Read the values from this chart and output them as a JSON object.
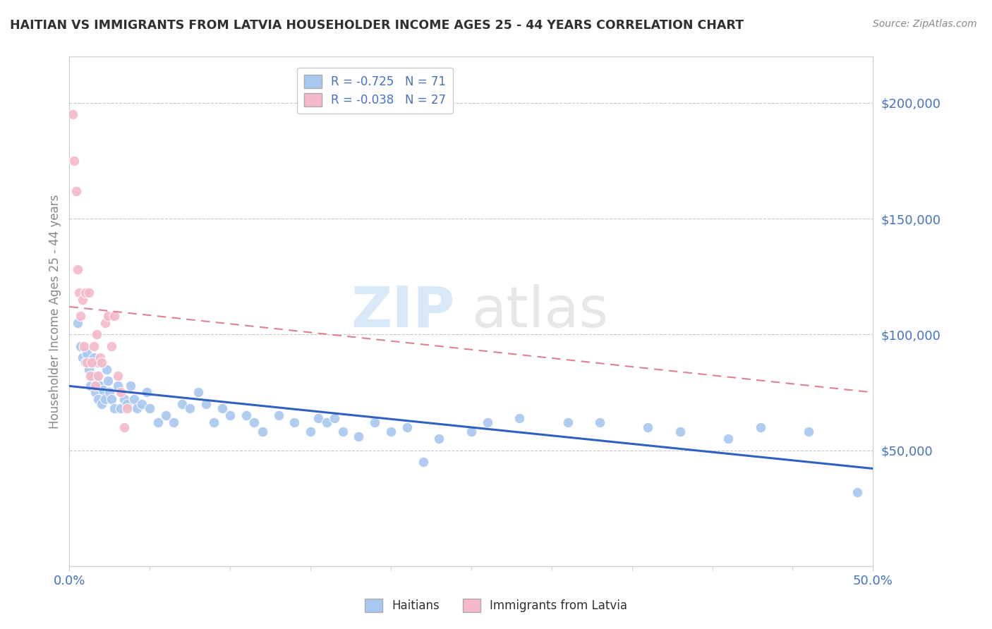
{
  "title": "HAITIAN VS IMMIGRANTS FROM LATVIA HOUSEHOLDER INCOME AGES 25 - 44 YEARS CORRELATION CHART",
  "source": "Source: ZipAtlas.com",
  "ylabel": "Householder Income Ages 25 - 44 years",
  "legend_label1": "Haitians",
  "legend_label2": "Immigrants from Latvia",
  "legend_r1": "R = -0.725",
  "legend_n1": "N = 71",
  "legend_r2": "R = -0.038",
  "legend_n2": "N = 27",
  "watermark_zip": "ZIP",
  "watermark_atlas": "atlas",
  "haitian_color": "#a8c8f0",
  "latvia_color": "#f5b8c8",
  "haitian_line_color": "#3060c0",
  "latvia_line_color": "#e08090",
  "title_color": "#303030",
  "axis_label_color": "#4472c4",
  "grid_color": "#c8c8c8",
  "xlim": [
    0.0,
    0.5
  ],
  "ylim": [
    0,
    220000
  ],
  "yticks": [
    0,
    50000,
    100000,
    150000,
    200000
  ],
  "haitian_x": [
    0.005,
    0.007,
    0.008,
    0.01,
    0.011,
    0.012,
    0.013,
    0.013,
    0.014,
    0.015,
    0.016,
    0.016,
    0.017,
    0.018,
    0.018,
    0.019,
    0.02,
    0.021,
    0.022,
    0.023,
    0.024,
    0.025,
    0.026,
    0.028,
    0.03,
    0.032,
    0.034,
    0.036,
    0.038,
    0.04,
    0.042,
    0.045,
    0.048,
    0.05,
    0.055,
    0.06,
    0.065,
    0.07,
    0.075,
    0.08,
    0.085,
    0.09,
    0.095,
    0.1,
    0.11,
    0.115,
    0.12,
    0.13,
    0.14,
    0.15,
    0.155,
    0.16,
    0.165,
    0.17,
    0.18,
    0.19,
    0.2,
    0.21,
    0.22,
    0.23,
    0.25,
    0.26,
    0.28,
    0.31,
    0.33,
    0.36,
    0.38,
    0.41,
    0.43,
    0.46,
    0.49
  ],
  "haitian_y": [
    105000,
    95000,
    90000,
    88000,
    92000,
    85000,
    88000,
    78000,
    82000,
    90000,
    82000,
    75000,
    80000,
    88000,
    72000,
    78000,
    70000,
    76000,
    72000,
    85000,
    80000,
    75000,
    72000,
    68000,
    78000,
    68000,
    72000,
    70000,
    78000,
    72000,
    68000,
    70000,
    75000,
    68000,
    62000,
    65000,
    62000,
    70000,
    68000,
    75000,
    70000,
    62000,
    68000,
    65000,
    65000,
    62000,
    58000,
    65000,
    62000,
    58000,
    64000,
    62000,
    64000,
    58000,
    56000,
    62000,
    58000,
    60000,
    45000,
    55000,
    58000,
    62000,
    64000,
    62000,
    62000,
    60000,
    58000,
    55000,
    60000,
    58000,
    32000
  ],
  "latvia_x": [
    0.002,
    0.003,
    0.004,
    0.005,
    0.006,
    0.007,
    0.008,
    0.009,
    0.01,
    0.011,
    0.012,
    0.013,
    0.014,
    0.015,
    0.016,
    0.017,
    0.018,
    0.019,
    0.02,
    0.022,
    0.024,
    0.026,
    0.028,
    0.03,
    0.032,
    0.034,
    0.036
  ],
  "latvia_y": [
    195000,
    175000,
    162000,
    128000,
    118000,
    108000,
    115000,
    95000,
    118000,
    88000,
    118000,
    82000,
    88000,
    95000,
    78000,
    100000,
    82000,
    90000,
    88000,
    105000,
    108000,
    95000,
    108000,
    82000,
    75000,
    60000,
    68000
  ]
}
